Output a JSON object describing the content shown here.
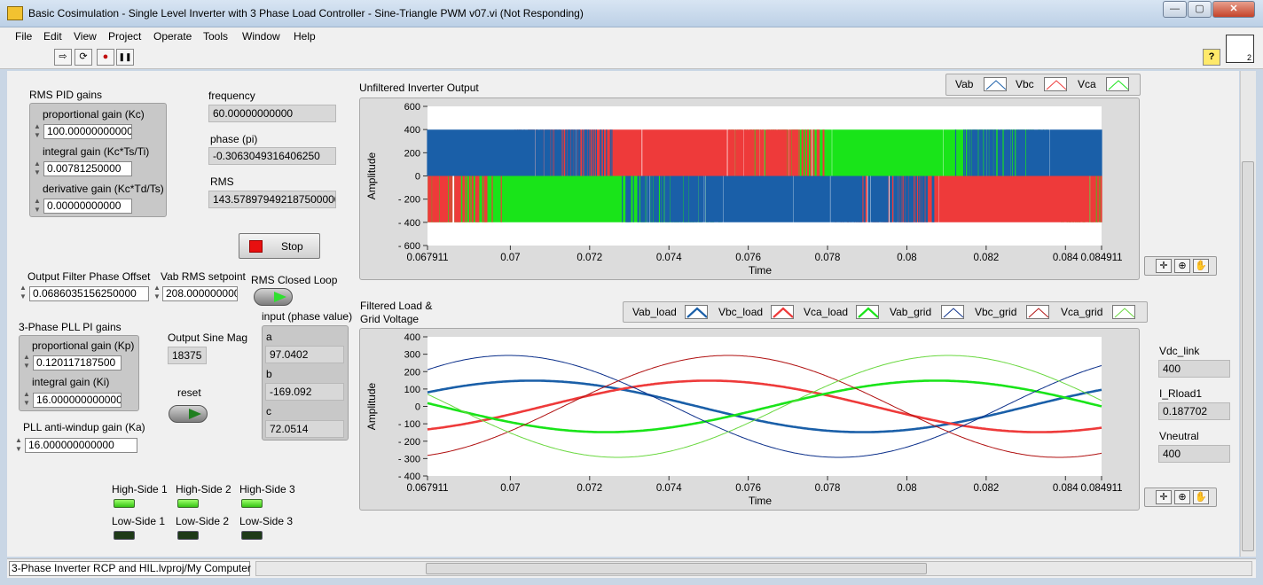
{
  "window": {
    "title": "Basic Cosimulation - Single Level Inverter with 3 Phase Load Controller - Sine-Triangle PWM v07.vi (Not Responding)",
    "minimize": "—",
    "maximize": "▢",
    "close": "✕"
  },
  "menu": [
    "File",
    "Edit",
    "View",
    "Project",
    "Operate",
    "Tools",
    "Window",
    "Help"
  ],
  "toolbar": {
    "run": "⇨",
    "run_continuous": "⟳",
    "abort": "●",
    "pause": "❚❚",
    "help": "?",
    "vi_icon": "2"
  },
  "rms_pid": {
    "title": "RMS PID gains",
    "kc_label": "proportional gain (Kc)",
    "kc_value": "100.00000000000",
    "ti_label": "integral gain (Kc*Ts/Ti)",
    "ti_value": "0.00781250000",
    "td_label": "derivative gain (Kc*Td/Ts)",
    "td_value": "0.00000000000"
  },
  "indicators": {
    "frequency_label": "frequency",
    "frequency_value": "60.00000000000",
    "phase_label": "phase (pi)",
    "phase_value": "-0.3063049316406250",
    "rms_label": "RMS",
    "rms_value": "143.578979492187500000"
  },
  "stop_button": {
    "label": "Stop"
  },
  "filter": {
    "offset_label": "Output Filter Phase Offset",
    "offset_value": "0.0686035156250000",
    "vab_label": "Vab RMS setpoint",
    "vab_value": "208.000000000",
    "closed_loop_label": "RMS Closed Loop"
  },
  "pll": {
    "title": "3-Phase PLL PI gains",
    "kp_label": "proportional gain (Kp)",
    "kp_value": "0.120117187500",
    "ki_label": "integral gain (Ki)",
    "ki_value": "16.000000000000",
    "ka_label": "PLL anti-windup gain (Ka)",
    "ka_value": "16.000000000000"
  },
  "sine": {
    "mag_label": "Output Sine Mag",
    "mag_value": "18375",
    "reset_label": "reset"
  },
  "phase_input": {
    "title": "input (phase value)",
    "a_label": "a",
    "a_value": "97.0402",
    "b_label": "b",
    "b_value": "-169.092",
    "c_label": "c",
    "c_value": "72.0514"
  },
  "leds": {
    "high": [
      "High-Side 1",
      "High-Side 2",
      "High-Side 3"
    ],
    "low": [
      "Low-Side 1",
      "Low-Side 2",
      "Low-Side 3"
    ]
  },
  "right_indicators": {
    "vdc_label": "Vdc_link",
    "vdc_value": "400",
    "iload_label": "I_Rload1",
    "iload_value": "0.187702",
    "vneutral_label": "Vneutral",
    "vneutral_value": "400"
  },
  "palette": {
    "cursor": "✛",
    "zoom": "⊕",
    "pan": "✋"
  },
  "status": {
    "path": "3-Phase Inverter RCP and HIL.lvproj/My Computer"
  },
  "colors": {
    "vab": "#1a5fa8",
    "vbc": "#ee3a3a",
    "vca": "#19e419",
    "grid_vab": "#0b2f8a",
    "grid_vbc": "#b01010",
    "grid_vca": "#6ad840"
  },
  "chart_data": [
    {
      "type": "line",
      "title": "Unfiltered Inverter Output",
      "xlabel": "Time",
      "ylabel": "Amplitude",
      "xlim": [
        0.067911,
        0.084911
      ],
      "ylim": [
        -600,
        600
      ],
      "xticks": [
        "0.067911",
        "0.07",
        "0.072",
        "0.074",
        "0.076",
        "0.078",
        "0.08",
        "0.082",
        "0.084",
        "0.084911"
      ],
      "yticks": [
        "600",
        "400",
        "200",
        "0",
        "-200",
        "-400",
        "-600"
      ],
      "series": [
        {
          "name": "Vab",
          "color": "#1a5fa8",
          "levels": [
            400,
            0,
            -400
          ]
        },
        {
          "name": "Vbc",
          "color": "#ee3a3a",
          "levels": [
            400,
            0,
            -400
          ]
        },
        {
          "name": "Vca",
          "color": "#19e419",
          "levels": [
            400,
            0,
            -400
          ]
        }
      ],
      "sine_frequency": 60,
      "pwm_amplitude": 400
    },
    {
      "type": "line",
      "title": "Filtered Load & Grid Voltage",
      "xlabel": "Time",
      "ylabel": "Amplitude",
      "xlim": [
        0.067911,
        0.084911
      ],
      "ylim": [
        -400,
        400
      ],
      "xticks": [
        "0.067911",
        "0.07",
        "0.072",
        "0.074",
        "0.076",
        "0.078",
        "0.08",
        "0.082",
        "0.084",
        "0.084911"
      ],
      "yticks": [
        "400",
        "300",
        "200",
        "100",
        "0",
        "-100",
        "-200",
        "-300",
        "-400"
      ],
      "frequency": 60,
      "series": [
        {
          "name": "Vab_load",
          "color": "#1a5fa8",
          "amplitude": 148,
          "peak_time": 0.07055
        },
        {
          "name": "Vbc_load",
          "color": "#ee3a3a",
          "amplitude": 148,
          "peak_time": 0.075
        },
        {
          "name": "Vca_load",
          "color": "#19e419",
          "amplitude": 148,
          "peak_time": 0.08075
        },
        {
          "name": "Vab_grid",
          "color": "#0b2f8a",
          "amplitude": 293,
          "peak_time": 0.06995
        },
        {
          "name": "Vbc_grid",
          "color": "#b01010",
          "amplitude": 293,
          "peak_time": 0.0755
        },
        {
          "name": "Vca_grid",
          "color": "#6ad840",
          "amplitude": 293,
          "peak_time": 0.08105
        }
      ]
    }
  ]
}
